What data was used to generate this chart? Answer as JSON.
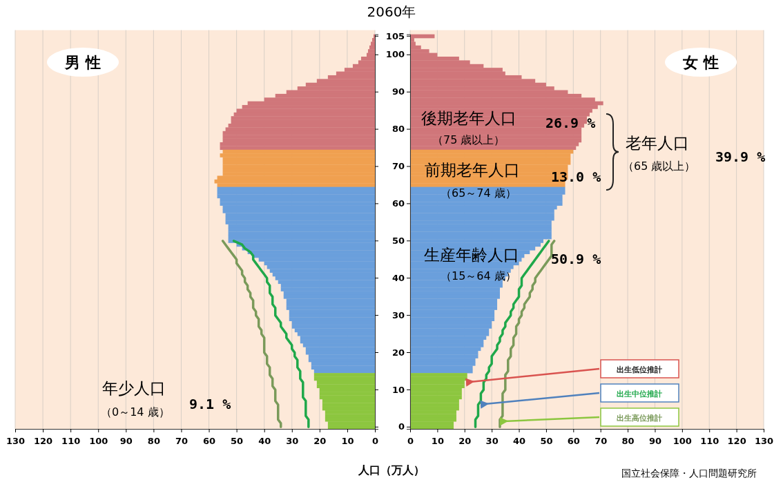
{
  "chart_data": [
    {
      "type": "bar",
      "orientation": "horizontal",
      "title": "2060年",
      "xlabel": "人口（万人）",
      "categories": [
        "105",
        null,
        null,
        null,
        null,
        "100",
        null,
        null,
        null,
        null,
        null,
        null,
        null,
        null,
        null,
        "90",
        null,
        null,
        null,
        null,
        null,
        null,
        null,
        null,
        null,
        "80",
        null,
        null,
        null,
        null,
        null,
        null,
        null,
        null,
        null,
        "70",
        null,
        null,
        null,
        null,
        null,
        null,
        null,
        null,
        null,
        "60",
        null,
        null,
        null,
        null,
        null,
        null,
        null,
        null,
        null,
        "50",
        null,
        null,
        null,
        null,
        null,
        null,
        null,
        null,
        null,
        "40",
        null,
        null,
        null,
        null,
        null,
        null,
        null,
        null,
        null,
        "30",
        null,
        null,
        null,
        null,
        null,
        null,
        null,
        null,
        null,
        "20",
        null,
        null,
        null,
        null,
        null,
        null,
        null,
        null,
        null,
        "10",
        null,
        null,
        null,
        null,
        null,
        null,
        null,
        null,
        null,
        "0"
      ],
      "xlim": [
        130,
        0
      ],
      "xticks": [
        0,
        10,
        20,
        30,
        40,
        50,
        60,
        70,
        80,
        90,
        100,
        110,
        120,
        130
      ],
      "grid": "x",
      "tick_labels": "x",
      "series": [
        {
          "type": "bar",
          "colors": [
            "#d0767a",
            "#d0767a",
            "#d0767a",
            "#d0767a",
            "#d0767a",
            "#d0767a",
            "#d0767a",
            "#d0767a",
            "#d0767a",
            "#d0767a",
            "#d0767a",
            "#d0767a",
            "#d0767a",
            "#d0767a",
            "#d0767a",
            "#d0767a",
            "#d0767a",
            "#d0767a",
            "#d0767a",
            "#d0767a",
            "#d0767a",
            "#d0767a",
            "#d0767a",
            "#d0767a",
            "#d0767a",
            "#d0767a",
            "#d0767a",
            "#d0767a",
            "#d0767a",
            "#d0767a",
            "#d0767a",
            "#f0a050",
            "#f0a050",
            "#f0a050",
            "#f0a050",
            "#f0a050",
            "#f0a050",
            "#f0a050",
            "#f0a050",
            "#f0a050",
            "#f0a050",
            "#6a9fdc",
            "#6a9fdc",
            "#6a9fdc",
            "#6a9fdc",
            "#6a9fdc",
            "#6a9fdc",
            "#6a9fdc",
            "#6a9fdc",
            "#6a9fdc",
            "#6a9fdc",
            "#6a9fdc",
            "#6a9fdc",
            "#6a9fdc",
            "#6a9fdc",
            "#6a9fdc",
            "#6a9fdc",
            "#6a9fdc",
            "#6a9fdc",
            "#6a9fdc",
            "#6a9fdc",
            "#6a9fdc",
            "#6a9fdc",
            "#6a9fdc",
            "#6a9fdc",
            "#6a9fdc",
            "#6a9fdc",
            "#6a9fdc",
            "#6a9fdc",
            "#6a9fdc",
            "#6a9fdc",
            "#6a9fdc",
            "#6a9fdc",
            "#6a9fdc",
            "#6a9fdc",
            "#6a9fdc",
            "#6a9fdc",
            "#6a9fdc",
            "#6a9fdc",
            "#6a9fdc",
            "#6a9fdc",
            "#6a9fdc",
            "#6a9fdc",
            "#6a9fdc",
            "#6a9fdc",
            "#6a9fdc",
            "#6a9fdc",
            "#6a9fdc",
            "#6a9fdc",
            "#6a9fdc",
            "#6a9fdc",
            "#8cc63f",
            "#8cc63f",
            "#8cc63f",
            "#8cc63f",
            "#8cc63f",
            "#8cc63f",
            "#8cc63f",
            "#8cc63f",
            "#8cc63f",
            "#8cc63f",
            "#8cc63f",
            "#8cc63f",
            "#8cc63f",
            "#8cc63f",
            "#8cc63f"
          ],
          "values": [
            0.5,
            1,
            1.5,
            2,
            2.5,
            3,
            5,
            6,
            8,
            11,
            14,
            17,
            21,
            25,
            28,
            32,
            36,
            40,
            46,
            48,
            50,
            51,
            52,
            52,
            53,
            54,
            55,
            55,
            55,
            56,
            56,
            55,
            56,
            55,
            55,
            55,
            55,
            55,
            57,
            58,
            57,
            57,
            57,
            57,
            56,
            56,
            55,
            55,
            54,
            54,
            54,
            53,
            53,
            53,
            53,
            53,
            50,
            48,
            46,
            44,
            42,
            40,
            39,
            38,
            37,
            36,
            35,
            34,
            34,
            33,
            33,
            32,
            32,
            32,
            31,
            31,
            31,
            30,
            30,
            29,
            28,
            27,
            27,
            26,
            25,
            25,
            24,
            24,
            23,
            23,
            22,
            22,
            22,
            21,
            21,
            20,
            20,
            20,
            19,
            19,
            19,
            18,
            18,
            18,
            17,
            17
          ]
        },
        {
          "type": "line",
          "color": "#1fa84a",
          "values": [
            null,
            null,
            null,
            null,
            null,
            null,
            null,
            null,
            null,
            null,
            null,
            null,
            null,
            null,
            null,
            null,
            null,
            null,
            null,
            null,
            null,
            null,
            null,
            null,
            null,
            null,
            null,
            null,
            null,
            null,
            null,
            null,
            null,
            null,
            null,
            null,
            null,
            null,
            null,
            null,
            null,
            null,
            null,
            null,
            null,
            null,
            null,
            null,
            null,
            null,
            null,
            null,
            null,
            null,
            null,
            51,
            48,
            47,
            45,
            44,
            44,
            43,
            42,
            41,
            40,
            39,
            39,
            38,
            38,
            38,
            37,
            37,
            37,
            36,
            36,
            36,
            35,
            34,
            34,
            33,
            32,
            32,
            31,
            30,
            30,
            29,
            29,
            28,
            28,
            28,
            27,
            27,
            27,
            26,
            26,
            26,
            26,
            26,
            25,
            25,
            25,
            25,
            25,
            24,
            24,
            24
          ]
        },
        {
          "type": "line",
          "color": "#7a9a5a",
          "values": [
            null,
            null,
            null,
            null,
            null,
            null,
            null,
            null,
            null,
            null,
            null,
            null,
            null,
            null,
            null,
            null,
            null,
            null,
            null,
            null,
            null,
            null,
            null,
            null,
            null,
            null,
            null,
            null,
            null,
            null,
            null,
            null,
            null,
            null,
            null,
            null,
            null,
            null,
            null,
            null,
            null,
            null,
            null,
            null,
            null,
            null,
            null,
            null,
            null,
            null,
            null,
            null,
            null,
            null,
            null,
            55,
            54,
            53,
            52,
            51,
            50,
            50,
            49,
            48,
            48,
            47,
            47,
            46,
            46,
            45,
            45,
            44,
            44,
            44,
            43,
            43,
            42,
            42,
            42,
            41,
            41,
            40,
            40,
            40,
            40,
            40,
            39,
            39,
            39,
            38,
            38,
            38,
            37,
            37,
            37,
            36,
            36,
            36,
            36,
            35,
            35,
            35,
            35,
            35,
            34,
            34
          ]
        }
      ],
      "annotations": [
        "男 性",
        "年少人口",
        "（0～14 歳）",
        "9.1 %",
        "国立社会保障・人口問題研究所"
      ]
    },
    {
      "type": "bar",
      "orientation": "horizontal",
      "categories": [
        "105",
        null,
        null,
        null,
        null,
        "100",
        null,
        null,
        null,
        null,
        null,
        null,
        null,
        null,
        null,
        "90",
        null,
        null,
        null,
        null,
        null,
        null,
        null,
        null,
        null,
        "80",
        null,
        null,
        null,
        null,
        null,
        null,
        null,
        null,
        null,
        "70",
        null,
        null,
        null,
        null,
        null,
        null,
        null,
        null,
        null,
        "60",
        null,
        null,
        null,
        null,
        null,
        null,
        null,
        null,
        null,
        "50",
        null,
        null,
        null,
        null,
        null,
        null,
        null,
        null,
        null,
        "40",
        null,
        null,
        null,
        null,
        null,
        null,
        null,
        null,
        null,
        "30",
        null,
        null,
        null,
        null,
        null,
        null,
        null,
        null,
        null,
        "20",
        null,
        null,
        null,
        null,
        null,
        null,
        null,
        null,
        null,
        "10",
        null,
        null,
        null,
        null,
        null,
        null,
        null,
        null,
        null,
        "0"
      ],
      "xlim": [
        0,
        130
      ],
      "xticks": [
        0,
        10,
        20,
        30,
        40,
        50,
        60,
        70,
        80,
        90,
        100,
        110,
        120,
        130
      ],
      "grid": "x",
      "legend": "bottom right",
      "series": [
        {
          "type": "bar",
          "colors": [
            "#d0767a",
            "#d0767a",
            "#d0767a",
            "#d0767a",
            "#d0767a",
            "#d0767a",
            "#d0767a",
            "#d0767a",
            "#d0767a",
            "#d0767a",
            "#d0767a",
            "#d0767a",
            "#d0767a",
            "#d0767a",
            "#d0767a",
            "#d0767a",
            "#d0767a",
            "#d0767a",
            "#d0767a",
            "#d0767a",
            "#d0767a",
            "#d0767a",
            "#d0767a",
            "#d0767a",
            "#d0767a",
            "#d0767a",
            "#d0767a",
            "#d0767a",
            "#d0767a",
            "#d0767a",
            "#d0767a",
            "#f0a050",
            "#f0a050",
            "#f0a050",
            "#f0a050",
            "#f0a050",
            "#f0a050",
            "#f0a050",
            "#f0a050",
            "#f0a050",
            "#f0a050",
            "#6a9fdc",
            "#6a9fdc",
            "#6a9fdc",
            "#6a9fdc",
            "#6a9fdc",
            "#6a9fdc",
            "#6a9fdc",
            "#6a9fdc",
            "#6a9fdc",
            "#6a9fdc",
            "#6a9fdc",
            "#6a9fdc",
            "#6a9fdc",
            "#6a9fdc",
            "#6a9fdc",
            "#6a9fdc",
            "#6a9fdc",
            "#6a9fdc",
            "#6a9fdc",
            "#6a9fdc",
            "#6a9fdc",
            "#6a9fdc",
            "#6a9fdc",
            "#6a9fdc",
            "#6a9fdc",
            "#6a9fdc",
            "#6a9fdc",
            "#6a9fdc",
            "#6a9fdc",
            "#6a9fdc",
            "#6a9fdc",
            "#6a9fdc",
            "#6a9fdc",
            "#6a9fdc",
            "#6a9fdc",
            "#6a9fdc",
            "#6a9fdc",
            "#6a9fdc",
            "#6a9fdc",
            "#6a9fdc",
            "#6a9fdc",
            "#6a9fdc",
            "#6a9fdc",
            "#6a9fdc",
            "#6a9fdc",
            "#6a9fdc",
            "#6a9fdc",
            "#6a9fdc",
            "#6a9fdc",
            "#6a9fdc",
            "#8cc63f",
            "#8cc63f",
            "#8cc63f",
            "#8cc63f",
            "#8cc63f",
            "#8cc63f",
            "#8cc63f",
            "#8cc63f",
            "#8cc63f",
            "#8cc63f",
            "#8cc63f",
            "#8cc63f",
            "#8cc63f",
            "#8cc63f",
            "#8cc63f"
          ],
          "values": [
            9,
            1.5,
            2,
            4,
            7,
            10,
            18,
            22,
            27,
            34,
            35,
            41,
            46,
            50,
            53,
            58,
            63,
            68,
            71,
            69,
            67,
            66,
            65,
            65,
            64,
            63,
            63,
            63,
            63,
            62,
            61,
            60,
            59,
            59,
            59,
            58,
            58,
            58,
            58,
            57,
            57,
            57,
            57,
            56,
            56,
            56,
            54,
            53,
            53,
            53,
            52,
            52,
            52,
            52,
            52,
            49,
            48,
            46,
            44,
            42,
            41,
            40,
            38,
            37,
            36,
            35,
            34,
            34,
            33,
            33,
            33,
            32,
            32,
            32,
            31,
            31,
            31,
            30,
            30,
            29,
            29,
            28,
            27,
            27,
            26,
            25,
            25,
            24,
            24,
            23,
            23,
            21,
            21,
            20,
            20,
            19,
            19,
            19,
            18,
            18,
            18,
            17,
            17,
            17,
            16,
            16
          ]
        },
        {
          "type": "line",
          "name": "出生中位推計",
          "color": "#1fa84a",
          "values": [
            null,
            null,
            null,
            null,
            null,
            null,
            null,
            null,
            null,
            null,
            null,
            null,
            null,
            null,
            null,
            null,
            null,
            null,
            null,
            null,
            null,
            null,
            null,
            null,
            null,
            null,
            null,
            null,
            null,
            null,
            null,
            null,
            null,
            null,
            null,
            null,
            null,
            null,
            null,
            null,
            null,
            null,
            null,
            null,
            null,
            null,
            null,
            null,
            null,
            null,
            null,
            null,
            null,
            null,
            null,
            51,
            50,
            49,
            48,
            47,
            46,
            45,
            44,
            43,
            42,
            41,
            41,
            41,
            40,
            40,
            40,
            39,
            38,
            38,
            37,
            37,
            36,
            35,
            35,
            34,
            34,
            33,
            33,
            32,
            32,
            31,
            30,
            30,
            30,
            29,
            29,
            28,
            28,
            27,
            27,
            27,
            26,
            26,
            26,
            25,
            25,
            25,
            25,
            24,
            24,
            24
          ]
        },
        {
          "type": "line",
          "name": "出生高位推計",
          "color": "#7a9a5a",
          "values": [
            null,
            null,
            null,
            null,
            null,
            null,
            null,
            null,
            null,
            null,
            null,
            null,
            null,
            null,
            null,
            null,
            null,
            null,
            null,
            null,
            null,
            null,
            null,
            null,
            null,
            null,
            null,
            null,
            null,
            null,
            null,
            null,
            null,
            null,
            null,
            null,
            null,
            null,
            null,
            null,
            null,
            null,
            null,
            null,
            null,
            null,
            null,
            null,
            null,
            null,
            null,
            null,
            null,
            null,
            null,
            53,
            52,
            52,
            52,
            52,
            51,
            50,
            49,
            48,
            47,
            46,
            46,
            45,
            45,
            44,
            44,
            43,
            42,
            42,
            41,
            41,
            40,
            40,
            39,
            39,
            39,
            38,
            38,
            38,
            37,
            37,
            37,
            36,
            36,
            36,
            36,
            35,
            35,
            35,
            35,
            35,
            34,
            34,
            34,
            34,
            34,
            34,
            34,
            33,
            33,
            33
          ]
        }
      ],
      "annotations": [
        "出生低位推計",
        "女 性",
        "後期老年人口",
        "（75 歳以上）",
        "26.9 %",
        "前期老年人口",
        "（65～74 歳）",
        "13.0 %",
        "老年人口",
        "（65 歳以上）",
        "39.9 %",
        "生産年齢人口",
        "（15～64 歳）",
        "50.9 %"
      ]
    }
  ]
}
